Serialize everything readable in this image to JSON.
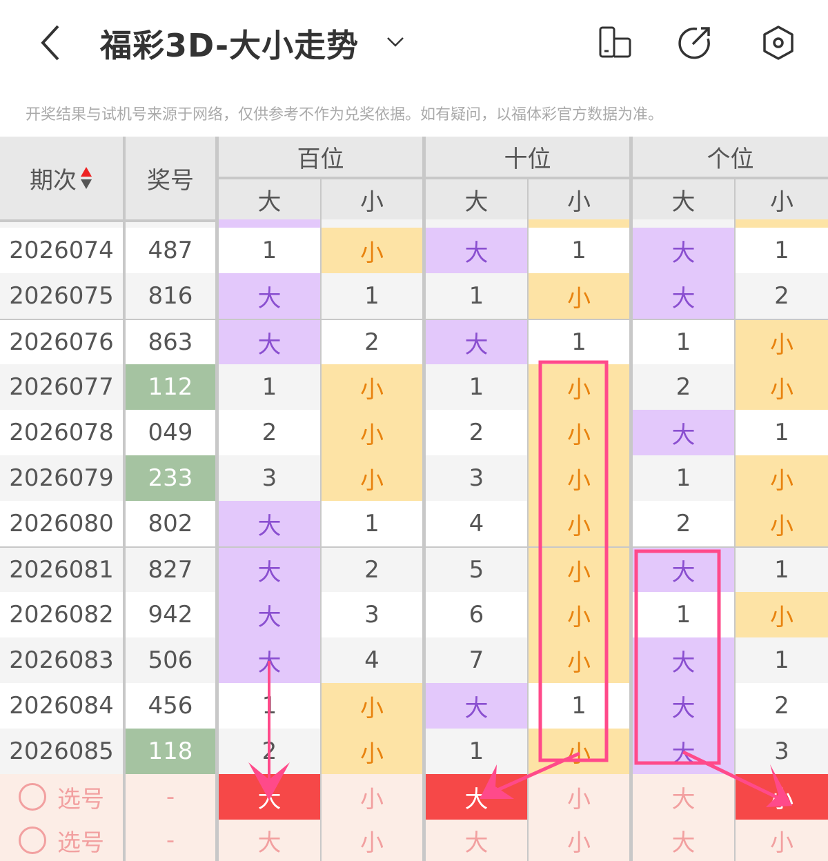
{
  "header": {
    "title": "福彩3D-大小走势",
    "back_icon": "chevron-left-icon",
    "dropdown_icon": "chevron-down-icon",
    "icons": [
      "layout-toggle-icon",
      "share-icon",
      "settings-icon"
    ]
  },
  "notice": "开奖结果与试机号来源于网络，仅供参考不作为兑奖依据。如有疑问，以福体彩官方数据为准。",
  "columns": {
    "period": "期次",
    "number": "奖号",
    "groups": [
      "百位",
      "十位",
      "个位"
    ],
    "big": "大",
    "small": "小"
  },
  "colors": {
    "big_bg": "#e3c8fb",
    "small_bg": "#fde3a5",
    "highlight": "#f64848",
    "annotation": "#ff4a8a",
    "repeat_number": "#a5c3a1"
  },
  "partial_row": [
    "big",
    "",
    "",
    "small",
    "",
    "small"
  ],
  "rows": [
    {
      "period": "2026074",
      "number": "487",
      "repeat": false,
      "cells": [
        "1",
        "小",
        "大",
        "1",
        "大",
        "1"
      ]
    },
    {
      "period": "2026075",
      "number": "816",
      "repeat": false,
      "cells": [
        "大",
        "1",
        "1",
        "小",
        "大",
        "2"
      ]
    },
    {
      "period": "2026076",
      "number": "863",
      "repeat": false,
      "cells": [
        "大",
        "2",
        "大",
        "1",
        "1",
        "小"
      ]
    },
    {
      "period": "2026077",
      "number": "112",
      "repeat": true,
      "cells": [
        "1",
        "小",
        "1",
        "小",
        "2",
        "小"
      ]
    },
    {
      "period": "2026078",
      "number": "049",
      "repeat": false,
      "cells": [
        "2",
        "小",
        "2",
        "小",
        "大",
        "1"
      ]
    },
    {
      "period": "2026079",
      "number": "233",
      "repeat": true,
      "cells": [
        "3",
        "小",
        "3",
        "小",
        "1",
        "小"
      ]
    },
    {
      "period": "2026080",
      "number": "802",
      "repeat": false,
      "cells": [
        "大",
        "1",
        "4",
        "小",
        "2",
        "小"
      ]
    },
    {
      "period": "2026081",
      "number": "827",
      "repeat": false,
      "cells": [
        "大",
        "2",
        "5",
        "小",
        "大",
        "1"
      ]
    },
    {
      "period": "2026082",
      "number": "942",
      "repeat": false,
      "cells": [
        "大",
        "3",
        "6",
        "小",
        "1",
        "小"
      ]
    },
    {
      "period": "2026083",
      "number": "506",
      "repeat": false,
      "cells": [
        "大",
        "4",
        "7",
        "小",
        "大",
        "1"
      ]
    },
    {
      "period": "2026084",
      "number": "456",
      "repeat": false,
      "cells": [
        "1",
        "小",
        "大",
        "1",
        "大",
        "2"
      ]
    },
    {
      "period": "2026085",
      "number": "118",
      "repeat": true,
      "cells": [
        "2",
        "小",
        "1",
        "小",
        "大",
        "3"
      ]
    }
  ],
  "pick_rows": [
    {
      "label": "选号",
      "number": "-",
      "cells": [
        "大",
        "小",
        "大",
        "小",
        "大",
        "小"
      ],
      "selected": [
        true,
        false,
        true,
        false,
        false,
        true
      ]
    },
    {
      "label": "选号",
      "number": "-",
      "cells": [
        "大",
        "小",
        "大",
        "小",
        "大",
        "小"
      ],
      "selected": [
        false,
        false,
        false,
        false,
        false,
        false
      ]
    }
  ]
}
